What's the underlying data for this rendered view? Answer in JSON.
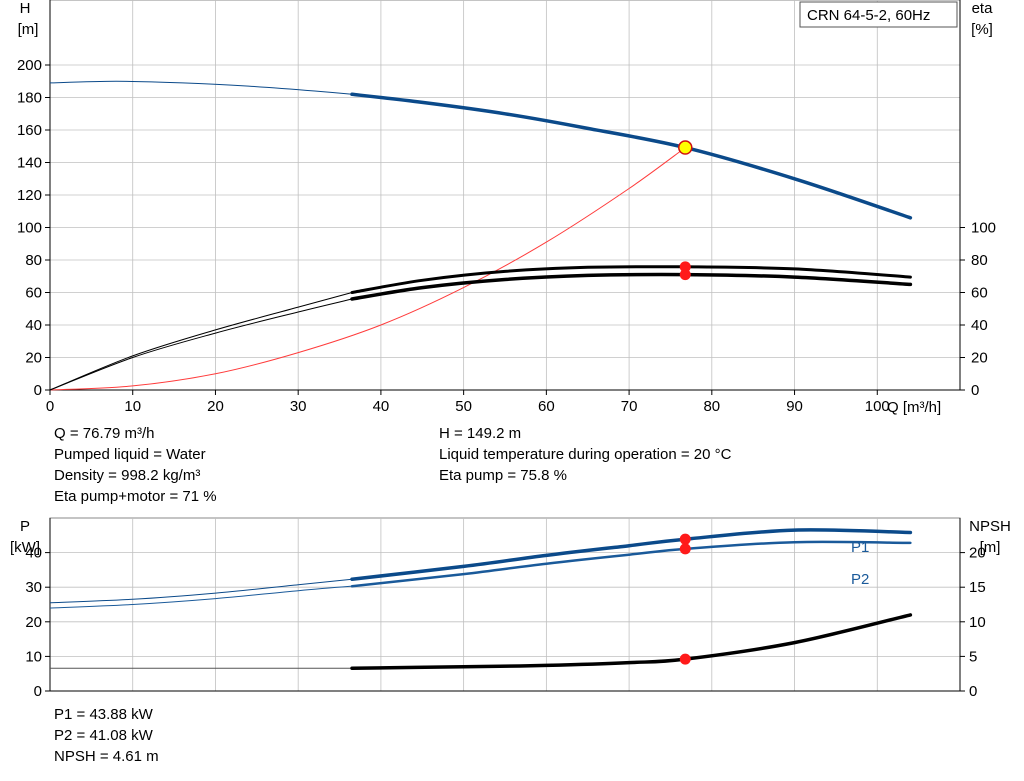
{
  "colors": {
    "head": "#0b4a8a",
    "p_curves": "#1a5a9a",
    "eta": "#000000",
    "system": "#ff3b3b",
    "npsh": "#000000",
    "dot": "#ff1a1a",
    "duty_fill": "#ffff00",
    "grid": "#c0c0c0"
  },
  "info": {
    "q": "Q = 76.79 m³/h",
    "liquid": "Pumped liquid = Water",
    "density": "Density = 998.2 kg/m³",
    "eta_total": "Eta pump+motor = 71 %",
    "h": "H = 149.2 m",
    "temp": "Liquid temperature during operation = 20 °C",
    "eta_pump": "Eta pump = 75.8 %",
    "p1": "P1 = 43.88 kW",
    "p2": "P2 = 41.08 kW",
    "npsh": "NPSH = 4.61 m"
  },
  "chart_data": [
    {
      "type": "line",
      "legend_box": "CRN 64-5-2, 60Hz",
      "x_axis": {
        "label": "Q [m³/h]",
        "ticks": [
          0,
          10,
          20,
          30,
          40,
          50,
          60,
          70,
          80,
          90,
          100
        ],
        "range": [
          0,
          110
        ]
      },
      "left_axis": {
        "label": "H",
        "unit": "[m]",
        "ticks": [
          0,
          20,
          40,
          60,
          80,
          100,
          120,
          140,
          160,
          180,
          200
        ],
        "range": [
          0,
          240
        ]
      },
      "right_axis": {
        "label": "eta",
        "unit": "[%]",
        "ticks": [
          0,
          20,
          40,
          60,
          80,
          100
        ]
      },
      "grid": true,
      "operating_range": [
        36.5,
        104
      ],
      "series": [
        {
          "id": "H",
          "axis": "left",
          "x": [
            0,
            8,
            16,
            24,
            32,
            36.5,
            45,
            55,
            65,
            76.79,
            90,
            104
          ],
          "y": [
            189,
            190,
            189,
            187,
            184,
            182,
            177,
            170,
            161,
            149.2,
            130,
            106
          ]
        },
        {
          "id": "eta_pump",
          "axis": "right",
          "x": [
            0,
            10,
            20,
            30,
            36.5,
            45,
            55,
            65,
            76.79,
            90,
            104
          ],
          "y": [
            0,
            21,
            37,
            51,
            60,
            67.5,
            73,
            75.5,
            75.8,
            74.5,
            69.5
          ]
        },
        {
          "id": "eta_total",
          "axis": "right",
          "x": [
            0,
            10,
            20,
            30,
            36.5,
            45,
            55,
            65,
            76.79,
            90,
            104
          ],
          "y": [
            0,
            20,
            35,
            48,
            56,
            63,
            68,
            70.5,
            71,
            69.5,
            65
          ]
        },
        {
          "id": "system",
          "axis": "left",
          "x": [
            0,
            10,
            20,
            30,
            40,
            50,
            60,
            70,
            76.79
          ],
          "y": [
            0,
            2.5,
            10,
            23,
            40,
            63,
            91,
            124,
            149.2
          ]
        }
      ],
      "duty_point": {
        "q": 76.79,
        "h": 149.2,
        "eta_pump": 75.8,
        "eta_total": 71
      }
    },
    {
      "type": "line",
      "left_axis": {
        "label": "P",
        "unit": "[kW]",
        "ticks": [
          0,
          10,
          20,
          30,
          40
        ],
        "range": [
          0,
          50
        ]
      },
      "right_axis": {
        "label": "NPSH",
        "unit": "[m]",
        "ticks": [
          0,
          5,
          10,
          15,
          20
        ],
        "range": [
          0,
          25
        ]
      },
      "grid": true,
      "operating_range": [
        36.5,
        104
      ],
      "series": [
        {
          "id": "P1",
          "name": "P1",
          "axis": "left",
          "x": [
            0,
            10,
            20,
            30,
            36.5,
            50,
            60,
            70,
            76.79,
            90,
            104
          ],
          "y": [
            25.5,
            26.5,
            28.3,
            30.7,
            32.3,
            36,
            39.2,
            42,
            43.88,
            46.5,
            45.8
          ]
        },
        {
          "id": "P2",
          "name": "P2",
          "axis": "left",
          "x": [
            0,
            10,
            20,
            30,
            36.5,
            50,
            60,
            70,
            76.79,
            90,
            104
          ],
          "y": [
            24,
            25,
            26.7,
            29,
            30.3,
            33.8,
            36.8,
            39.4,
            41.08,
            43,
            42.8
          ]
        },
        {
          "id": "NPSH",
          "axis": "right",
          "x": [
            0,
            36.5,
            50,
            60,
            70,
            76.79,
            90,
            104
          ],
          "y": [
            3.3,
            3.3,
            3.5,
            3.7,
            4.1,
            4.61,
            7,
            11
          ]
        }
      ],
      "duty_point": {
        "q": 76.79,
        "p1": 43.88,
        "p2": 41.08,
        "npsh": 4.61
      }
    }
  ]
}
